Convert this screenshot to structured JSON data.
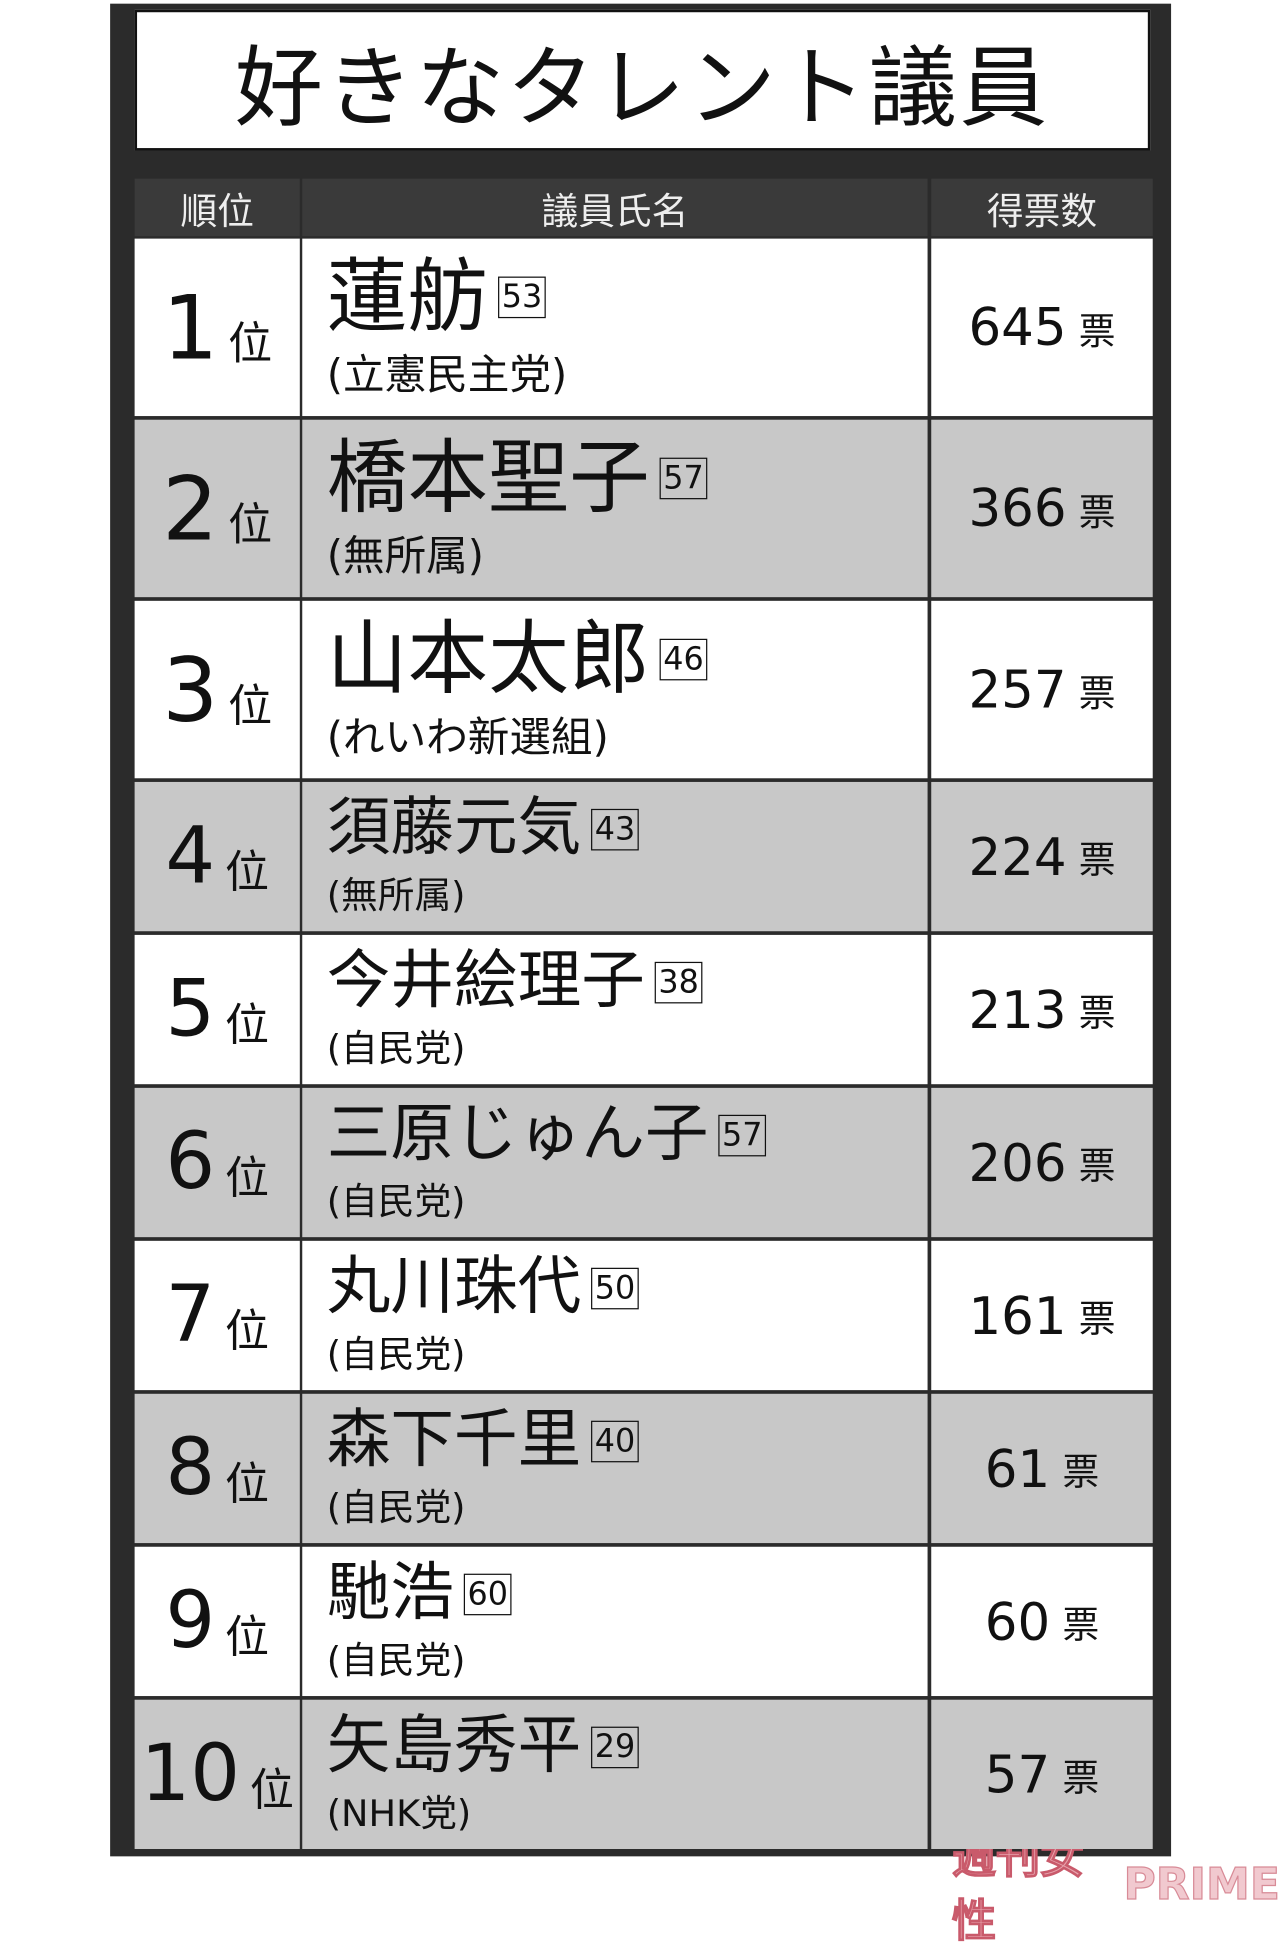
{
  "title": "好きなタレント議員",
  "table": {
    "header": [
      "順位",
      "議員氏名",
      "得票数"
    ],
    "rows": [
      {
        "rank": 1,
        "rank_unit": "位",
        "name": "蓮舫",
        "age": 53,
        "party": "(立憲民主党)",
        "votes": 645,
        "votes_unit": "票"
      },
      {
        "rank": 2,
        "rank_unit": "位",
        "name": "橋本聖子",
        "age": 57,
        "party": "(無所属)",
        "votes": 366,
        "votes_unit": "票"
      },
      {
        "rank": 3,
        "rank_unit": "位",
        "name": "山本太郎",
        "age": 46,
        "party": "(れいわ新選組)",
        "votes": 257,
        "votes_unit": "票"
      },
      {
        "rank": 4,
        "rank_unit": "位",
        "name": "須藤元気",
        "age": 43,
        "party": "(無所属)",
        "votes": 224,
        "votes_unit": "票"
      },
      {
        "rank": 5,
        "rank_unit": "位",
        "name": "今井絵理子",
        "age": 38,
        "party": "(自民党)",
        "votes": 213,
        "votes_unit": "票"
      },
      {
        "rank": 6,
        "rank_unit": "位",
        "name": "三原じゅん子",
        "age": 57,
        "party": "(自民党)",
        "votes": 206,
        "votes_unit": "票"
      },
      {
        "rank": 7,
        "rank_unit": "位",
        "name": "丸川珠代",
        "age": 50,
        "party": "(自民党)",
        "votes": 161,
        "votes_unit": "票"
      },
      {
        "rank": 8,
        "rank_unit": "位",
        "name": "森下千里",
        "age": 40,
        "party": "(自民党)",
        "votes": 61,
        "votes_unit": "票"
      },
      {
        "rank": 9,
        "rank_unit": "位",
        "name": "馳浩",
        "age": 60,
        "party": "(自民党)",
        "votes": 60,
        "votes_unit": "票"
      },
      {
        "rank": 10,
        "rank_unit": "位",
        "name": "矢島秀平",
        "age": 29,
        "party": "(NHK党)",
        "votes": 57,
        "votes_unit": "票"
      }
    ]
  },
  "watermark": {
    "brand": "週刊女性",
    "sub": "PRIME"
  }
}
